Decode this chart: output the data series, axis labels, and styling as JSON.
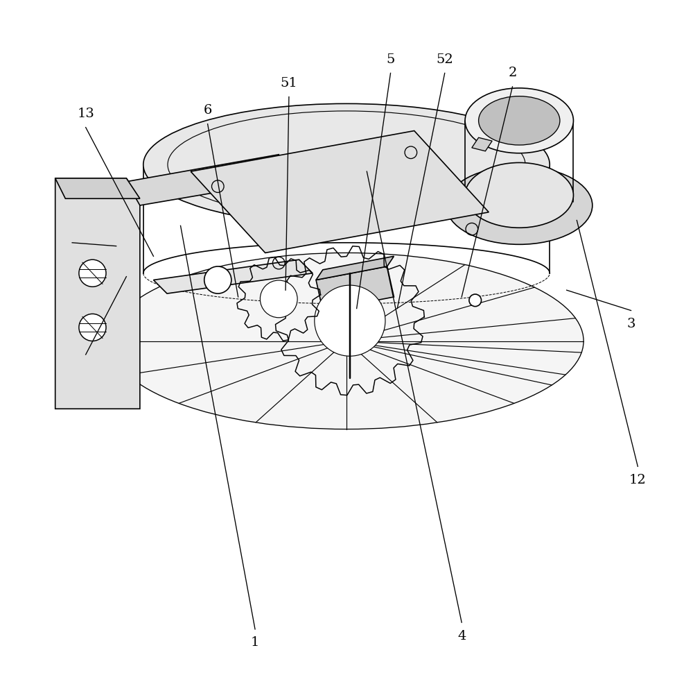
{
  "bg_color": "#ffffff",
  "line_color": "#000000",
  "line_width": 1.2,
  "fig_width": 10.0,
  "fig_height": 9.83,
  "label_fontsize": 14
}
